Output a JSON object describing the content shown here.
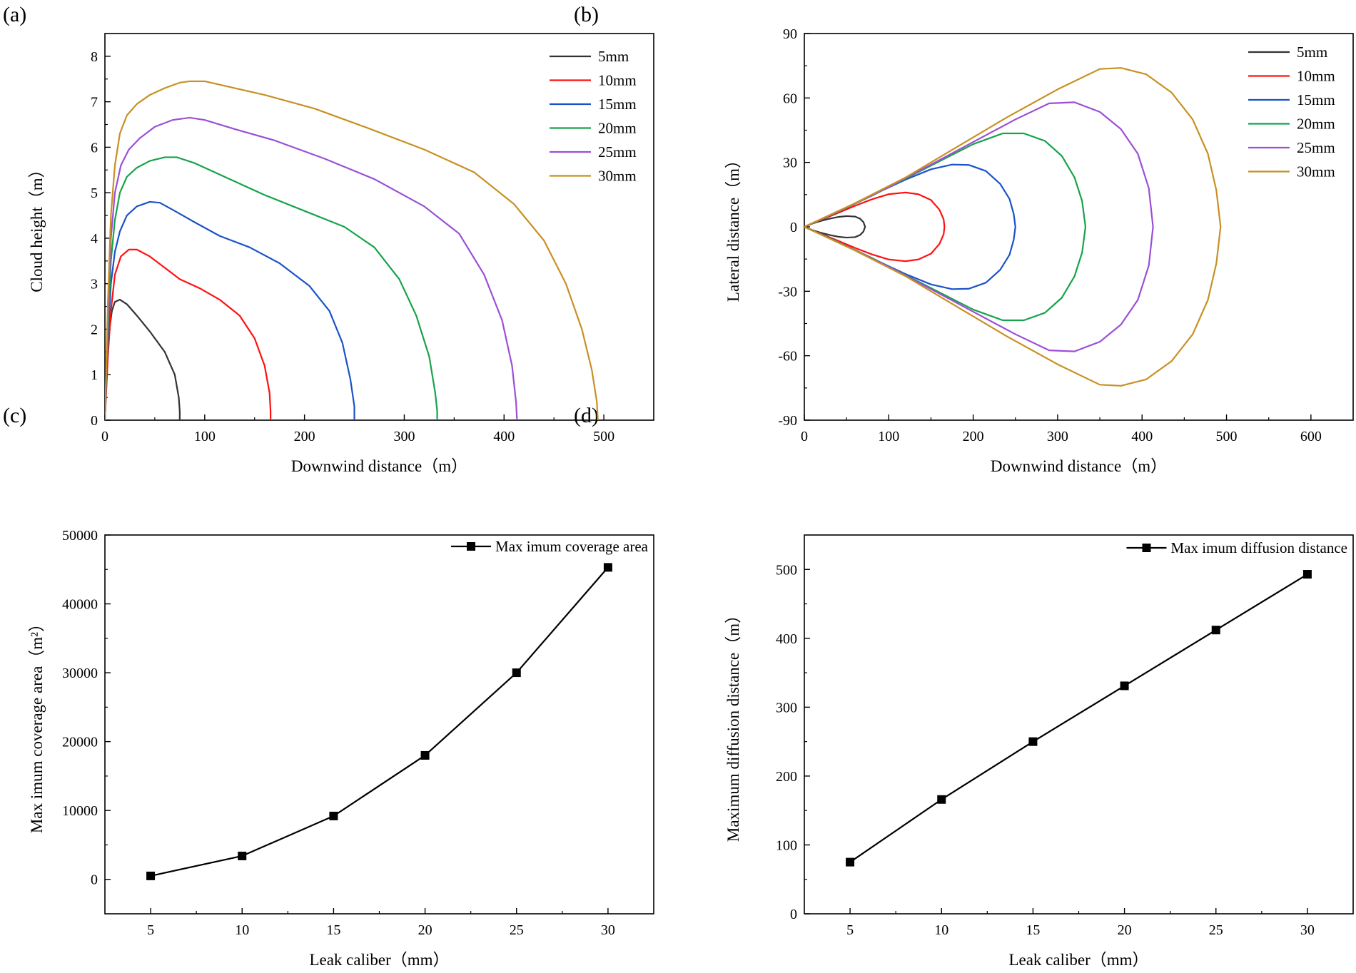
{
  "chart_data": [
    {
      "id": "a",
      "panel_label": "(a)",
      "type": "line",
      "xlabel": "Downwind distance（m）",
      "ylabel": "Cloud height（m）",
      "xlim": [
        0,
        550
      ],
      "ylim": [
        0,
        8.5
      ],
      "xticks": [
        0,
        100,
        200,
        300,
        400,
        500
      ],
      "yticks": [
        0,
        1,
        2,
        3,
        4,
        5,
        6,
        7,
        8
      ],
      "legend_position": "top-right",
      "series": [
        {
          "name": "5mm",
          "color": "#333333",
          "x": [
            0,
            2,
            4,
            7,
            10,
            15,
            22,
            32,
            45,
            60,
            70,
            74,
            75,
            75
          ],
          "y": [
            0,
            1.2,
            1.9,
            2.4,
            2.6,
            2.65,
            2.55,
            2.3,
            1.95,
            1.5,
            1.0,
            0.5,
            0.2,
            0
          ]
        },
        {
          "name": "10mm",
          "color": "#ff1010",
          "x": [
            0,
            3,
            6,
            10,
            16,
            24,
            32,
            45,
            60,
            75,
            95,
            115,
            135,
            150,
            160,
            165,
            166,
            166
          ],
          "y": [
            0,
            1.4,
            2.4,
            3.2,
            3.6,
            3.75,
            3.75,
            3.6,
            3.35,
            3.1,
            2.9,
            2.65,
            2.3,
            1.8,
            1.2,
            0.6,
            0.2,
            0
          ]
        },
        {
          "name": "15mm",
          "color": "#1a53c8",
          "x": [
            0,
            3,
            6,
            10,
            15,
            22,
            32,
            45,
            55,
            70,
            90,
            115,
            145,
            175,
            205,
            225,
            238,
            246,
            250,
            250
          ],
          "y": [
            0,
            1.8,
            3.0,
            3.7,
            4.15,
            4.5,
            4.7,
            4.8,
            4.78,
            4.6,
            4.35,
            4.05,
            3.8,
            3.45,
            2.95,
            2.4,
            1.7,
            0.9,
            0.3,
            0
          ]
        },
        {
          "name": "20mm",
          "color": "#16a34a",
          "x": [
            0,
            3,
            6,
            10,
            15,
            22,
            32,
            45,
            60,
            72,
            90,
            120,
            160,
            200,
            240,
            270,
            295,
            312,
            325,
            331,
            333,
            333
          ],
          "y": [
            0,
            2.0,
            3.5,
            4.4,
            5.0,
            5.35,
            5.55,
            5.7,
            5.78,
            5.78,
            5.65,
            5.35,
            4.95,
            4.6,
            4.25,
            3.8,
            3.1,
            2.3,
            1.4,
            0.6,
            0.2,
            0
          ]
        },
        {
          "name": "25mm",
          "color": "#9b4fd6",
          "x": [
            0,
            3,
            6,
            10,
            16,
            24,
            35,
            50,
            68,
            85,
            100,
            130,
            170,
            220,
            270,
            320,
            355,
            380,
            398,
            408,
            412,
            413
          ],
          "y": [
            0,
            2.3,
            4.0,
            5.0,
            5.6,
            5.95,
            6.2,
            6.45,
            6.6,
            6.65,
            6.6,
            6.4,
            6.15,
            5.75,
            5.3,
            4.7,
            4.1,
            3.2,
            2.2,
            1.2,
            0.4,
            0
          ]
        },
        {
          "name": "30mm",
          "color": "#c89022",
          "x": [
            0,
            3,
            6,
            10,
            15,
            22,
            32,
            45,
            60,
            75,
            85,
            100,
            120,
            160,
            210,
            260,
            320,
            370,
            410,
            440,
            462,
            478,
            488,
            493,
            494
          ],
          "y": [
            0,
            2.6,
            4.5,
            5.6,
            6.3,
            6.7,
            6.95,
            7.15,
            7.3,
            7.42,
            7.45,
            7.45,
            7.35,
            7.15,
            6.85,
            6.45,
            5.95,
            5.45,
            4.75,
            3.95,
            3.0,
            2.0,
            1.1,
            0.4,
            0
          ]
        }
      ]
    },
    {
      "id": "b",
      "panel_label": "(b)",
      "type": "line",
      "xlabel": "Downwind distance（m）",
      "ylabel": "Lateral distance（m）",
      "xlim": [
        0,
        650
      ],
      "ylim": [
        -90,
        90
      ],
      "xticks": [
        0,
        100,
        200,
        300,
        400,
        500,
        600
      ],
      "yticks": [
        -90,
        -60,
        -30,
        0,
        30,
        60,
        90
      ],
      "legend_position": "top-right",
      "series": [
        {
          "name": "5mm",
          "color": "#333333",
          "x": [
            0,
            10,
            20,
            30,
            40,
            50,
            60,
            66,
            70,
            72
          ],
          "y": [
            0,
            1.6,
            2.8,
            3.8,
            4.6,
            5.0,
            4.8,
            3.8,
            2.2,
            0
          ]
        },
        {
          "name": "10mm",
          "color": "#ff1010",
          "x": [
            0,
            20,
            40,
            60,
            80,
            100,
            120,
            135,
            150,
            160,
            165,
            166
          ],
          "y": [
            0,
            3.3,
            6.5,
            9.8,
            12.8,
            15.2,
            16.0,
            15.2,
            12.5,
            8.0,
            3.5,
            0
          ]
        },
        {
          "name": "15mm",
          "color": "#1a53c8",
          "x": [
            0,
            30,
            60,
            90,
            120,
            150,
            175,
            195,
            215,
            232,
            243,
            248,
            250
          ],
          "y": [
            0,
            5.2,
            10.8,
            16.5,
            22.0,
            26.8,
            29.0,
            28.8,
            26.0,
            20.0,
            13.0,
            6.0,
            0
          ]
        },
        {
          "name": "20mm",
          "color": "#16a34a",
          "x": [
            0,
            40,
            80,
            120,
            160,
            200,
            235,
            260,
            285,
            305,
            320,
            329,
            333
          ],
          "y": [
            0,
            7.0,
            14.5,
            22.5,
            30.5,
            38.5,
            43.5,
            43.5,
            40.0,
            33.0,
            23.0,
            12.0,
            0
          ]
        },
        {
          "name": "25mm",
          "color": "#9b4fd6",
          "x": [
            0,
            50,
            100,
            150,
            200,
            250,
            290,
            320,
            350,
            375,
            395,
            408,
            413
          ],
          "y": [
            0,
            9.0,
            18.5,
            29.0,
            39.5,
            50.0,
            57.5,
            58.0,
            53.5,
            45.5,
            34.0,
            18.0,
            0
          ]
        },
        {
          "name": "30mm",
          "color": "#c89022",
          "x": [
            0,
            60,
            120,
            180,
            240,
            300,
            350,
            375,
            405,
            435,
            460,
            478,
            488,
            493
          ],
          "y": [
            0,
            11.0,
            23.0,
            37.0,
            51.0,
            64.0,
            73.5,
            74.0,
            71.0,
            62.5,
            50.0,
            34.0,
            17.0,
            0
          ]
        }
      ]
    },
    {
      "id": "c",
      "panel_label": "(c)",
      "type": "line",
      "xlabel": "Leak caliber（mm）",
      "ylabel": "Max imum coverage area（m²）",
      "xlim": [
        2.5,
        32.5
      ],
      "ylim": [
        -5000,
        50000
      ],
      "xticks": [
        5,
        10,
        15,
        20,
        25,
        30
      ],
      "yticks": [
        0,
        10000,
        20000,
        30000,
        40000,
        50000
      ],
      "legend_position": "top-right",
      "series": [
        {
          "name": "Max imum coverage area",
          "color": "#000000",
          "x": [
            5,
            10,
            15,
            20,
            25,
            30
          ],
          "y": [
            500,
            3400,
            9200,
            18000,
            30000,
            45300
          ]
        }
      ]
    },
    {
      "id": "d",
      "panel_label": "(d)",
      "type": "line",
      "xlabel": "Leak caliber（mm）",
      "ylabel": "Maximum diffusion distance（m）",
      "xlim": [
        2.5,
        32.5
      ],
      "ylim": [
        0,
        550
      ],
      "xticks": [
        5,
        10,
        15,
        20,
        25,
        30
      ],
      "yticks": [
        0,
        100,
        200,
        300,
        400,
        500
      ],
      "legend_position": "top-right",
      "series": [
        {
          "name": "Max imum diffusion distance",
          "color": "#000000",
          "x": [
            5,
            10,
            15,
            20,
            25,
            30
          ],
          "y": [
            75,
            166,
            250,
            331,
            412,
            493
          ]
        }
      ]
    }
  ]
}
